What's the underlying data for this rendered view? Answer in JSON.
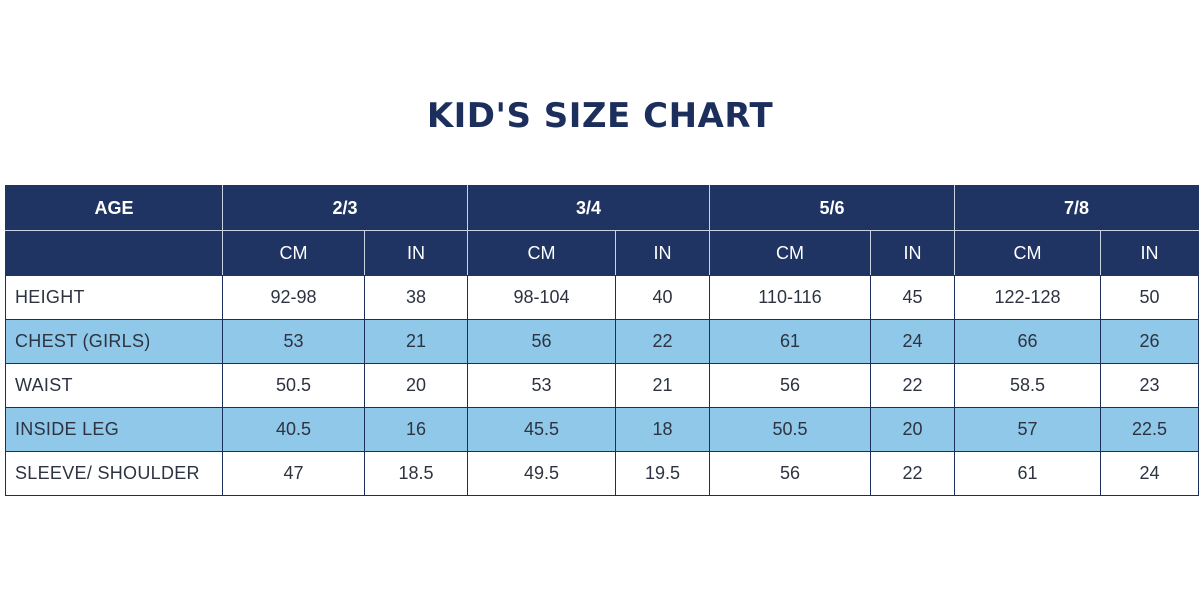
{
  "title": "KID'S SIZE CHART",
  "colors": {
    "title": "#1c2f5c",
    "header_bg": "#203463",
    "header_text": "#ffffff",
    "stripe": "#8fc8e8",
    "border": "#1c2f5c"
  },
  "chart_data": {
    "type": "table",
    "title": "KID'S SIZE CHART",
    "row_header_label": "AGE",
    "age_groups": [
      "2/3",
      "3/4",
      "5/6",
      "7/8"
    ],
    "units": [
      "CM",
      "IN"
    ],
    "rows": [
      {
        "label": "HEIGHT",
        "values": [
          "92-98",
          "38",
          "98-104",
          "40",
          "110-116",
          "45",
          "122-128",
          "50"
        ]
      },
      {
        "label": "CHEST (GIRLS)",
        "values": [
          "53",
          "21",
          "56",
          "22",
          "61",
          "24",
          "66",
          "26"
        ]
      },
      {
        "label": "WAIST",
        "values": [
          "50.5",
          "20",
          "53",
          "21",
          "56",
          "22",
          "58.5",
          "23"
        ]
      },
      {
        "label": "INSIDE LEG",
        "values": [
          "40.5",
          "16",
          "45.5",
          "18",
          "50.5",
          "20",
          "57",
          "22.5"
        ]
      },
      {
        "label": "SLEEVE/ SHOULDER",
        "values": [
          "47",
          "18.5",
          "49.5",
          "19.5",
          "56",
          "22",
          "61",
          "24"
        ]
      }
    ]
  }
}
